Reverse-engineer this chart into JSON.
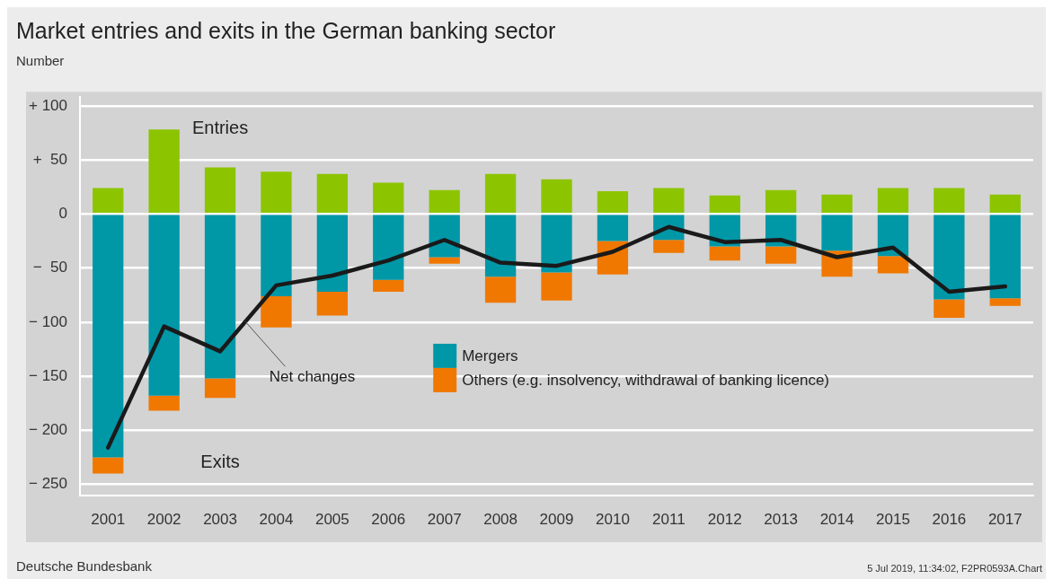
{
  "chart_data": {
    "type": "bar",
    "title": "Market entries and exits in the German banking sector",
    "ylabel": "Number",
    "categories": [
      "2001",
      "2002",
      "2003",
      "2004",
      "2005",
      "2006",
      "2007",
      "2008",
      "2009",
      "2010",
      "2011",
      "2012",
      "2013",
      "2014",
      "2015",
      "2016",
      "2017"
    ],
    "stacked": true,
    "series": [
      {
        "name": "Entries",
        "color": "#8dc400",
        "values": [
          24,
          78,
          43,
          39,
          37,
          29,
          22,
          37,
          32,
          21,
          24,
          17,
          22,
          18,
          24,
          24,
          18
        ]
      },
      {
        "name": "Mergers",
        "color": "#0097a7",
        "values": [
          -225,
          -168,
          -152,
          -76,
          -72,
          -61,
          -40,
          -58,
          -54,
          -25,
          -24,
          -30,
          -30,
          -34,
          -39,
          -79,
          -78
        ]
      },
      {
        "name": "Others (e.g. insolvency, withdrawal of banking licence)",
        "color": "#f07800",
        "values": [
          -15,
          -14,
          -18,
          -29,
          -22,
          -11,
          -6,
          -24,
          -26,
          -31,
          -12,
          -13,
          -16,
          -24,
          -16,
          -17,
          -7
        ]
      },
      {
        "name": "Net changes",
        "type": "line",
        "color": "#1a1a1a",
        "values": [
          -216,
          -104,
          -127,
          -66,
          -57,
          -43,
          -24,
          -45,
          -48,
          -35,
          -12,
          -26,
          -24,
          -40,
          -31,
          -72,
          -67
        ]
      }
    ],
    "ylim": [
      -260,
      108
    ],
    "yticks": [
      {
        "value": 100,
        "label": "+ 100"
      },
      {
        "value": 50,
        "label": "+  50"
      },
      0,
      {
        "value": -50,
        "label": "−  50"
      },
      {
        "value": -100,
        "label": "− 100"
      },
      {
        "value": -150,
        "label": "− 150"
      },
      {
        "value": -200,
        "label": "− 200"
      },
      {
        "value": -250,
        "label": "− 250"
      }
    ],
    "grid": "y",
    "legend": "center",
    "marker": "none",
    "line_style": "solid",
    "annotations": [
      "Exits",
      "Deutsche Bundesbank",
      "5 Jul 2019, 11:34:02, F2PR0593A.Chart"
    ]
  }
}
